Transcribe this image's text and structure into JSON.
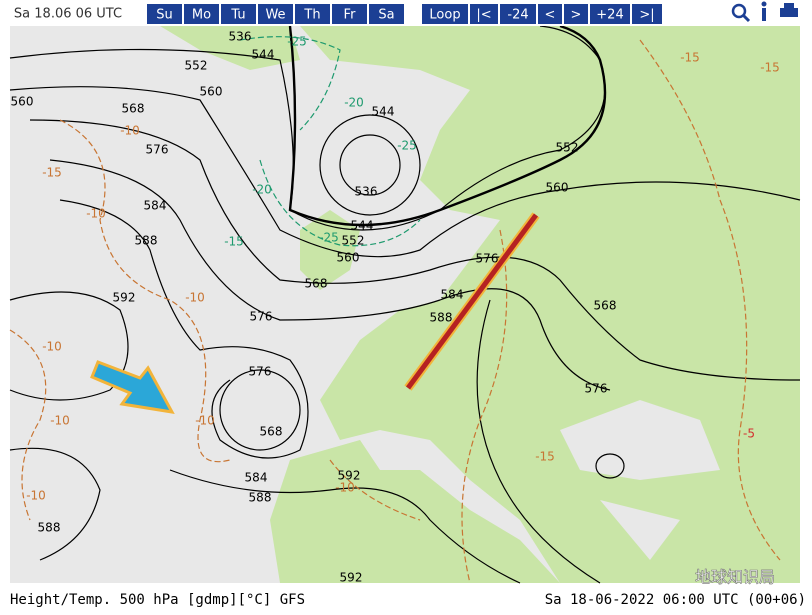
{
  "header": {
    "time": "Sa 18.06 06 UTC",
    "days": [
      "Su",
      "Mo",
      "Tu",
      "We",
      "Th",
      "Fr",
      "Sa"
    ],
    "controls": [
      "Loop",
      "|<",
      "-24",
      "<",
      ">",
      "+24",
      ">|"
    ]
  },
  "map": {
    "height_labels": [
      "536",
      "544",
      "552",
      "560",
      "568",
      "560",
      "576",
      "584",
      "588",
      "592",
      "544",
      "536",
      "544",
      "552",
      "560",
      "568",
      "576",
      "552",
      "560",
      "576",
      "584",
      "588",
      "568",
      "576",
      "576",
      "568",
      "584",
      "588",
      "592",
      "588",
      "592"
    ],
    "temp_labels": [
      "-25",
      "-20",
      "-25",
      "-10",
      "-15",
      "-10",
      "-20",
      "-15",
      "-25",
      "-10",
      "-10",
      "-10",
      "-10",
      "-10",
      "-5",
      "-15",
      "-15",
      "-15",
      "-10"
    ]
  },
  "footer": {
    "left": "Height/Temp. 500 hPa [gdmp][°C] GFS",
    "right": "Sa 18-06-2022 06:00 UTC (00+06)",
    "watermark": "地球知识局"
  }
}
